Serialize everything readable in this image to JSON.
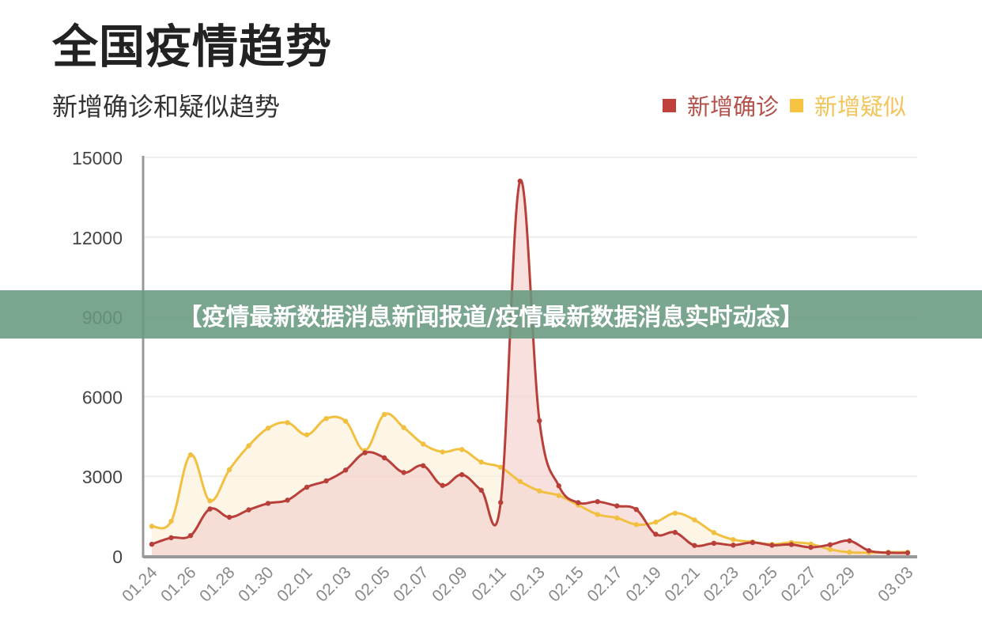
{
  "header": {
    "title": "全国疫情趋势",
    "subtitle": "新增确诊和疑似趋势"
  },
  "legend": [
    {
      "label": "新增确诊",
      "color": "#c0403a"
    },
    {
      "label": "新增疑似",
      "color": "#f5c242"
    }
  ],
  "banner": {
    "text": "【疫情最新数据消息新闻报道/疫情最新数据消息实时动态】"
  },
  "colors": {
    "confirmed_line": "#b9403a",
    "confirmed_fill": "#f2d0cc",
    "suspected_line": "#f2c040",
    "suspected_fill": "#fbeed6",
    "axis": "#999999",
    "grid": "#eeeeee",
    "tick_text": "#888888",
    "y_text": "#444444"
  },
  "chart_data": {
    "type": "line",
    "title": "新增确诊和疑似趋势",
    "xlabel": "",
    "ylabel": "",
    "ylim": [
      0,
      15000
    ],
    "yticks": [
      0,
      3000,
      6000,
      9000,
      12000,
      15000
    ],
    "grid": true,
    "legend_position": "top-right",
    "x": [
      "01.24",
      "01.25",
      "01.26",
      "01.27",
      "01.28",
      "01.29",
      "01.30",
      "01.31",
      "02.01",
      "02.02",
      "02.03",
      "02.04",
      "02.05",
      "02.06",
      "02.07",
      "02.08",
      "02.09",
      "02.10",
      "02.11",
      "02.12",
      "02.13",
      "02.14",
      "02.15",
      "02.16",
      "02.17",
      "02.18",
      "02.19",
      "02.20",
      "02.21",
      "02.22",
      "02.23",
      "02.24",
      "02.25",
      "02.26",
      "02.27",
      "02.28",
      "02.29",
      "03.01",
      "03.02",
      "03.03"
    ],
    "xtick_labels": [
      "01.24",
      "01.26",
      "01.28",
      "01.30",
      "02.01",
      "02.03",
      "02.05",
      "02.07",
      "02.09",
      "02.11",
      "02.13",
      "02.15",
      "02.17",
      "02.19",
      "02.21",
      "02.23",
      "02.25",
      "02.27",
      "02.29",
      "03.03"
    ],
    "series": [
      {
        "name": "新增确诊",
        "values": [
          444,
          688,
          769,
          1771,
          1459,
          1737,
          1982,
          2102,
          2590,
          2829,
          3235,
          3887,
          3694,
          3143,
          3399,
          2656,
          3062,
          2478,
          2015,
          14108,
          5090,
          2641,
          2009,
          2048,
          1886,
          1749,
          820,
          889,
          397,
          480,
          409,
          508,
          406,
          433,
          327,
          427,
          573,
          202,
          125,
          119
        ]
      },
      {
        "name": "新增疑似",
        "values": [
          1118,
          1309,
          3806,
          2077,
          3248,
          4148,
          4812,
          5019,
          4562,
          5173,
          5072,
          3971,
          5328,
          4833,
          4214,
          3916,
          4008,
          3536,
          3342,
          2807,
          2450,
          2277,
          1918,
          1563,
          1432,
          1185,
          1277,
          1614,
          1361,
          882,
          620,
          530,
          439,
          508,
          452,
          248,
          141,
          129,
          143,
          143
        ]
      }
    ]
  }
}
